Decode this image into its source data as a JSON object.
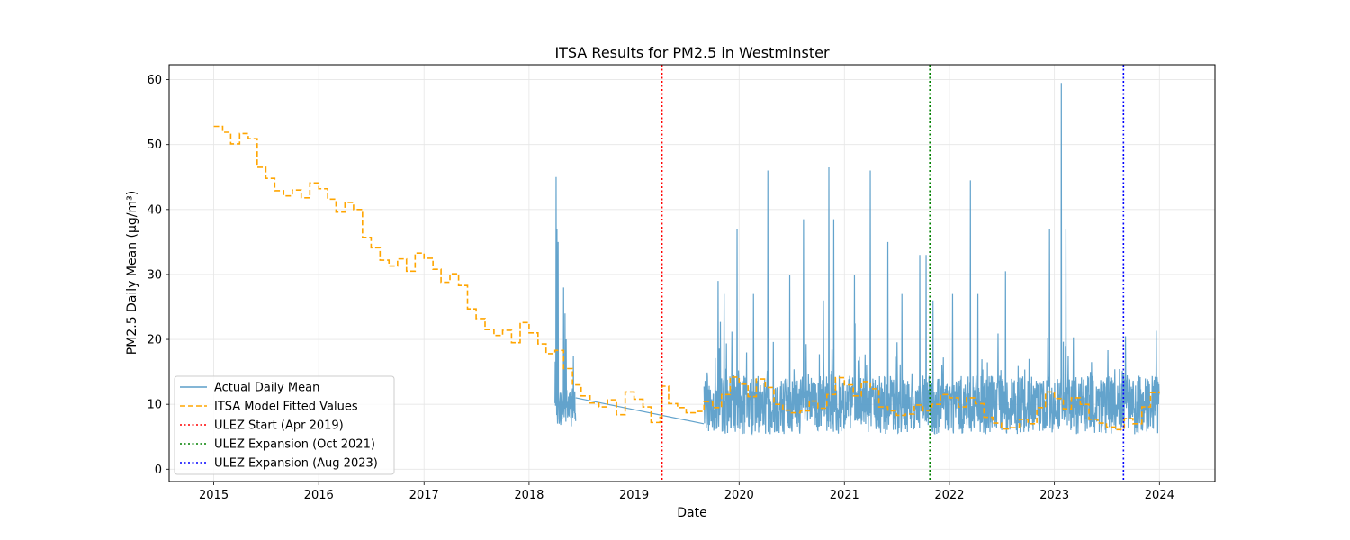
{
  "chart_data": {
    "type": "line",
    "title": "ITSA Results for PM2.5 in Westminster",
    "xlabel": "Date",
    "ylabel": "PM2.5 Daily Mean (µg/m³)",
    "xlim": [
      "2014-07-30",
      "2024-07-12"
    ],
    "ylim": [
      -1.9,
      62.3
    ],
    "x_ticks": [
      {
        "date": "2015-01-01",
        "label": "2015"
      },
      {
        "date": "2016-01-01",
        "label": "2016"
      },
      {
        "date": "2017-01-01",
        "label": "2017"
      },
      {
        "date": "2018-01-01",
        "label": "2018"
      },
      {
        "date": "2019-01-01",
        "label": "2019"
      },
      {
        "date": "2020-01-01",
        "label": "2020"
      },
      {
        "date": "2021-01-01",
        "label": "2021"
      },
      {
        "date": "2022-01-01",
        "label": "2022"
      },
      {
        "date": "2023-01-01",
        "label": "2023"
      },
      {
        "date": "2024-01-01",
        "label": "2024"
      }
    ],
    "y_ticks": [
      0,
      10,
      20,
      30,
      40,
      50,
      60
    ],
    "grid": true,
    "legend_position": "lower-left",
    "colors": {
      "actual": "#5b9ec9",
      "fitted": "#ffa500",
      "ulez_start": "#ff0000",
      "ulez_oct2021": "#008000",
      "ulez_aug2023": "#0000ff"
    },
    "legend": [
      {
        "label": "Actual Daily Mean",
        "style": "solid",
        "color": "#5b9ec9"
      },
      {
        "label": "ITSA Model Fitted Values",
        "style": "dashed",
        "color": "#ffa500"
      },
      {
        "label": "ULEZ Start (Apr 2019)",
        "style": "dotted",
        "color": "#ff0000"
      },
      {
        "label": "ULEZ Expansion (Oct 2021)",
        "style": "dotted",
        "color": "#008000"
      },
      {
        "label": "ULEZ Expansion (Aug 2023)",
        "style": "dotted",
        "color": "#0000ff"
      }
    ],
    "vlines": [
      {
        "date": "2019-04-08",
        "color": "#ff0000"
      },
      {
        "date": "2021-10-25",
        "color": "#008000"
      },
      {
        "date": "2023-08-29",
        "color": "#0000ff"
      }
    ],
    "series": [
      {
        "name": "ITSA Model Fitted Values",
        "style": "dashed",
        "step": true,
        "points": [
          [
            "2015-01-01",
            52.8
          ],
          [
            "2015-02-01",
            51.9
          ],
          [
            "2015-03-01",
            50.1
          ],
          [
            "2015-04-01",
            51.7
          ],
          [
            "2015-05-01",
            50.9
          ],
          [
            "2015-06-01",
            46.5
          ],
          [
            "2015-07-01",
            44.8
          ],
          [
            "2015-08-01",
            42.9
          ],
          [
            "2015-09-01",
            42.1
          ],
          [
            "2015-10-01",
            43.0
          ],
          [
            "2015-11-01",
            41.8
          ],
          [
            "2015-12-01",
            44.1
          ],
          [
            "2016-01-01",
            43.2
          ],
          [
            "2016-02-01",
            41.6
          ],
          [
            "2016-03-01",
            39.6
          ],
          [
            "2016-04-01",
            41.1
          ],
          [
            "2016-05-01",
            40.0
          ],
          [
            "2016-06-01",
            35.7
          ],
          [
            "2016-07-01",
            34.1
          ],
          [
            "2016-08-01",
            32.2
          ],
          [
            "2016-09-01",
            31.3
          ],
          [
            "2016-10-01",
            32.4
          ],
          [
            "2016-11-01",
            30.5
          ],
          [
            "2016-12-01",
            33.3
          ],
          [
            "2017-01-01",
            32.5
          ],
          [
            "2017-02-01",
            30.8
          ],
          [
            "2017-03-01",
            28.8
          ],
          [
            "2017-04-01",
            30.1
          ],
          [
            "2017-05-01",
            28.3
          ],
          [
            "2017-06-01",
            24.7
          ],
          [
            "2017-07-01",
            23.2
          ],
          [
            "2017-08-01",
            21.5
          ],
          [
            "2017-09-01",
            20.6
          ],
          [
            "2017-10-01",
            21.4
          ],
          [
            "2017-11-01",
            19.5
          ],
          [
            "2017-12-01",
            22.6
          ],
          [
            "2018-01-01",
            21.0
          ],
          [
            "2018-02-01",
            19.3
          ],
          [
            "2018-03-01",
            17.8
          ],
          [
            "2018-04-01",
            18.3
          ],
          [
            "2018-05-01",
            15.5
          ],
          [
            "2018-06-01",
            13.0
          ],
          [
            "2018-07-01",
            11.3
          ],
          [
            "2018-08-01",
            10.2
          ],
          [
            "2018-09-01",
            9.6
          ],
          [
            "2018-10-01",
            10.7
          ],
          [
            "2018-11-01",
            8.4
          ],
          [
            "2018-12-01",
            11.9
          ],
          [
            "2019-01-01",
            10.8
          ],
          [
            "2019-02-01",
            9.6
          ],
          [
            "2019-03-01",
            7.2
          ],
          [
            "2019-04-01",
            8.0
          ],
          [
            "2019-04-08",
            12.8
          ],
          [
            "2019-05-01",
            10.1
          ],
          [
            "2019-06-01",
            9.5
          ],
          [
            "2019-07-01",
            8.7
          ],
          [
            "2019-08-01",
            8.9
          ],
          [
            "2019-09-01",
            10.4
          ],
          [
            "2019-10-01",
            9.5
          ],
          [
            "2019-11-01",
            11.5
          ],
          [
            "2019-12-01",
            14.2
          ],
          [
            "2020-01-01",
            13.1
          ],
          [
            "2020-02-01",
            11.2
          ],
          [
            "2020-03-01",
            13.9
          ],
          [
            "2020-04-01",
            12.6
          ],
          [
            "2020-05-01",
            10.0
          ],
          [
            "2020-06-01",
            9.1
          ],
          [
            "2020-07-01",
            8.7
          ],
          [
            "2020-08-01",
            9.0
          ],
          [
            "2020-09-01",
            10.5
          ],
          [
            "2020-10-01",
            9.4
          ],
          [
            "2020-11-01",
            11.5
          ],
          [
            "2020-12-01",
            14.1
          ],
          [
            "2021-01-01",
            13.0
          ],
          [
            "2021-02-01",
            11.3
          ],
          [
            "2021-03-01",
            13.5
          ],
          [
            "2021-04-01",
            12.4
          ],
          [
            "2021-05-01",
            9.6
          ],
          [
            "2021-06-01",
            9.0
          ],
          [
            "2021-07-01",
            8.3
          ],
          [
            "2021-08-01",
            8.5
          ],
          [
            "2021-09-01",
            9.9
          ],
          [
            "2021-10-01",
            9.0
          ],
          [
            "2021-10-25",
            9.6
          ],
          [
            "2021-11-01",
            10.0
          ],
          [
            "2021-12-01",
            11.5
          ],
          [
            "2022-01-01",
            11.0
          ],
          [
            "2022-02-01",
            9.6
          ],
          [
            "2022-03-01",
            11.0
          ],
          [
            "2022-04-01",
            10.1
          ],
          [
            "2022-05-01",
            8.0
          ],
          [
            "2022-06-01",
            7.1
          ],
          [
            "2022-07-01",
            6.2
          ],
          [
            "2022-08-01",
            6.4
          ],
          [
            "2022-09-01",
            7.7
          ],
          [
            "2022-10-01",
            7.0
          ],
          [
            "2022-11-01",
            9.5
          ],
          [
            "2022-12-01",
            11.9
          ],
          [
            "2023-01-01",
            10.9
          ],
          [
            "2023-02-01",
            9.3
          ],
          [
            "2023-03-01",
            11.0
          ],
          [
            "2023-04-01",
            10.0
          ],
          [
            "2023-05-01",
            7.7
          ],
          [
            "2023-06-01",
            7.1
          ],
          [
            "2023-07-01",
            6.5
          ],
          [
            "2023-08-01",
            6.1
          ],
          [
            "2023-08-29",
            6.4
          ],
          [
            "2023-09-01",
            7.8
          ],
          [
            "2023-10-01",
            7.0
          ],
          [
            "2023-11-01",
            9.6
          ],
          [
            "2023-12-01",
            11.8
          ],
          [
            "2023-12-31",
            12.0
          ]
        ]
      },
      {
        "name": "Actual Daily Mean",
        "style": "solid",
        "segments": [
          {
            "start": "2018-04-01",
            "end": "2018-06-12",
            "base": 9.0,
            "noise": 3.0,
            "spikes": [
              [
                "2018-04-05",
                45.0
              ],
              [
                "2018-04-08",
                37.0
              ],
              [
                "2018-04-12",
                35.0
              ],
              [
                "2018-05-01",
                28.0
              ],
              [
                "2018-05-06",
                24.0
              ],
              [
                "2018-05-10",
                20.0
              ]
            ]
          },
          {
            "start": "2018-06-12",
            "end": "2019-08-31",
            "base": 11.0,
            "baseEnd": 7.0,
            "noise": 0.0,
            "spikes": [],
            "linear": true
          },
          {
            "start": "2019-09-01",
            "end": "2023-12-31",
            "base": 9.0,
            "noise": 4.5,
            "spikes": [
              [
                "2019-10-20",
                29.0
              ],
              [
                "2019-11-10",
                27.0
              ],
              [
                "2019-12-25",
                37.0
              ],
              [
                "2020-02-20",
                27.0
              ],
              [
                "2020-04-10",
                46.0
              ],
              [
                "2020-06-25",
                30.0
              ],
              [
                "2020-08-12",
                38.5
              ],
              [
                "2020-10-20",
                26.0
              ],
              [
                "2020-11-08",
                46.5
              ],
              [
                "2020-11-25",
                38.5
              ],
              [
                "2021-02-05",
                30.0
              ],
              [
                "2021-04-01",
                46.0
              ],
              [
                "2021-06-01",
                35.0
              ],
              [
                "2021-07-20",
                27.0
              ],
              [
                "2021-09-20",
                33.0
              ],
              [
                "2021-10-12",
                33.0
              ],
              [
                "2021-11-05",
                26.0
              ],
              [
                "2022-01-12",
                27.0
              ],
              [
                "2022-03-15",
                44.5
              ],
              [
                "2022-04-10",
                27.0
              ],
              [
                "2022-07-15",
                30.5
              ],
              [
                "2022-10-05",
                17.0
              ],
              [
                "2022-12-15",
                37.0
              ],
              [
                "2023-01-25",
                59.5
              ],
              [
                "2023-02-10",
                37.0
              ],
              [
                "2023-05-10",
                16.5
              ],
              [
                "2023-09-05",
                20.5
              ],
              [
                "2023-12-20",
                13.0
              ]
            ]
          }
        ]
      }
    ]
  }
}
